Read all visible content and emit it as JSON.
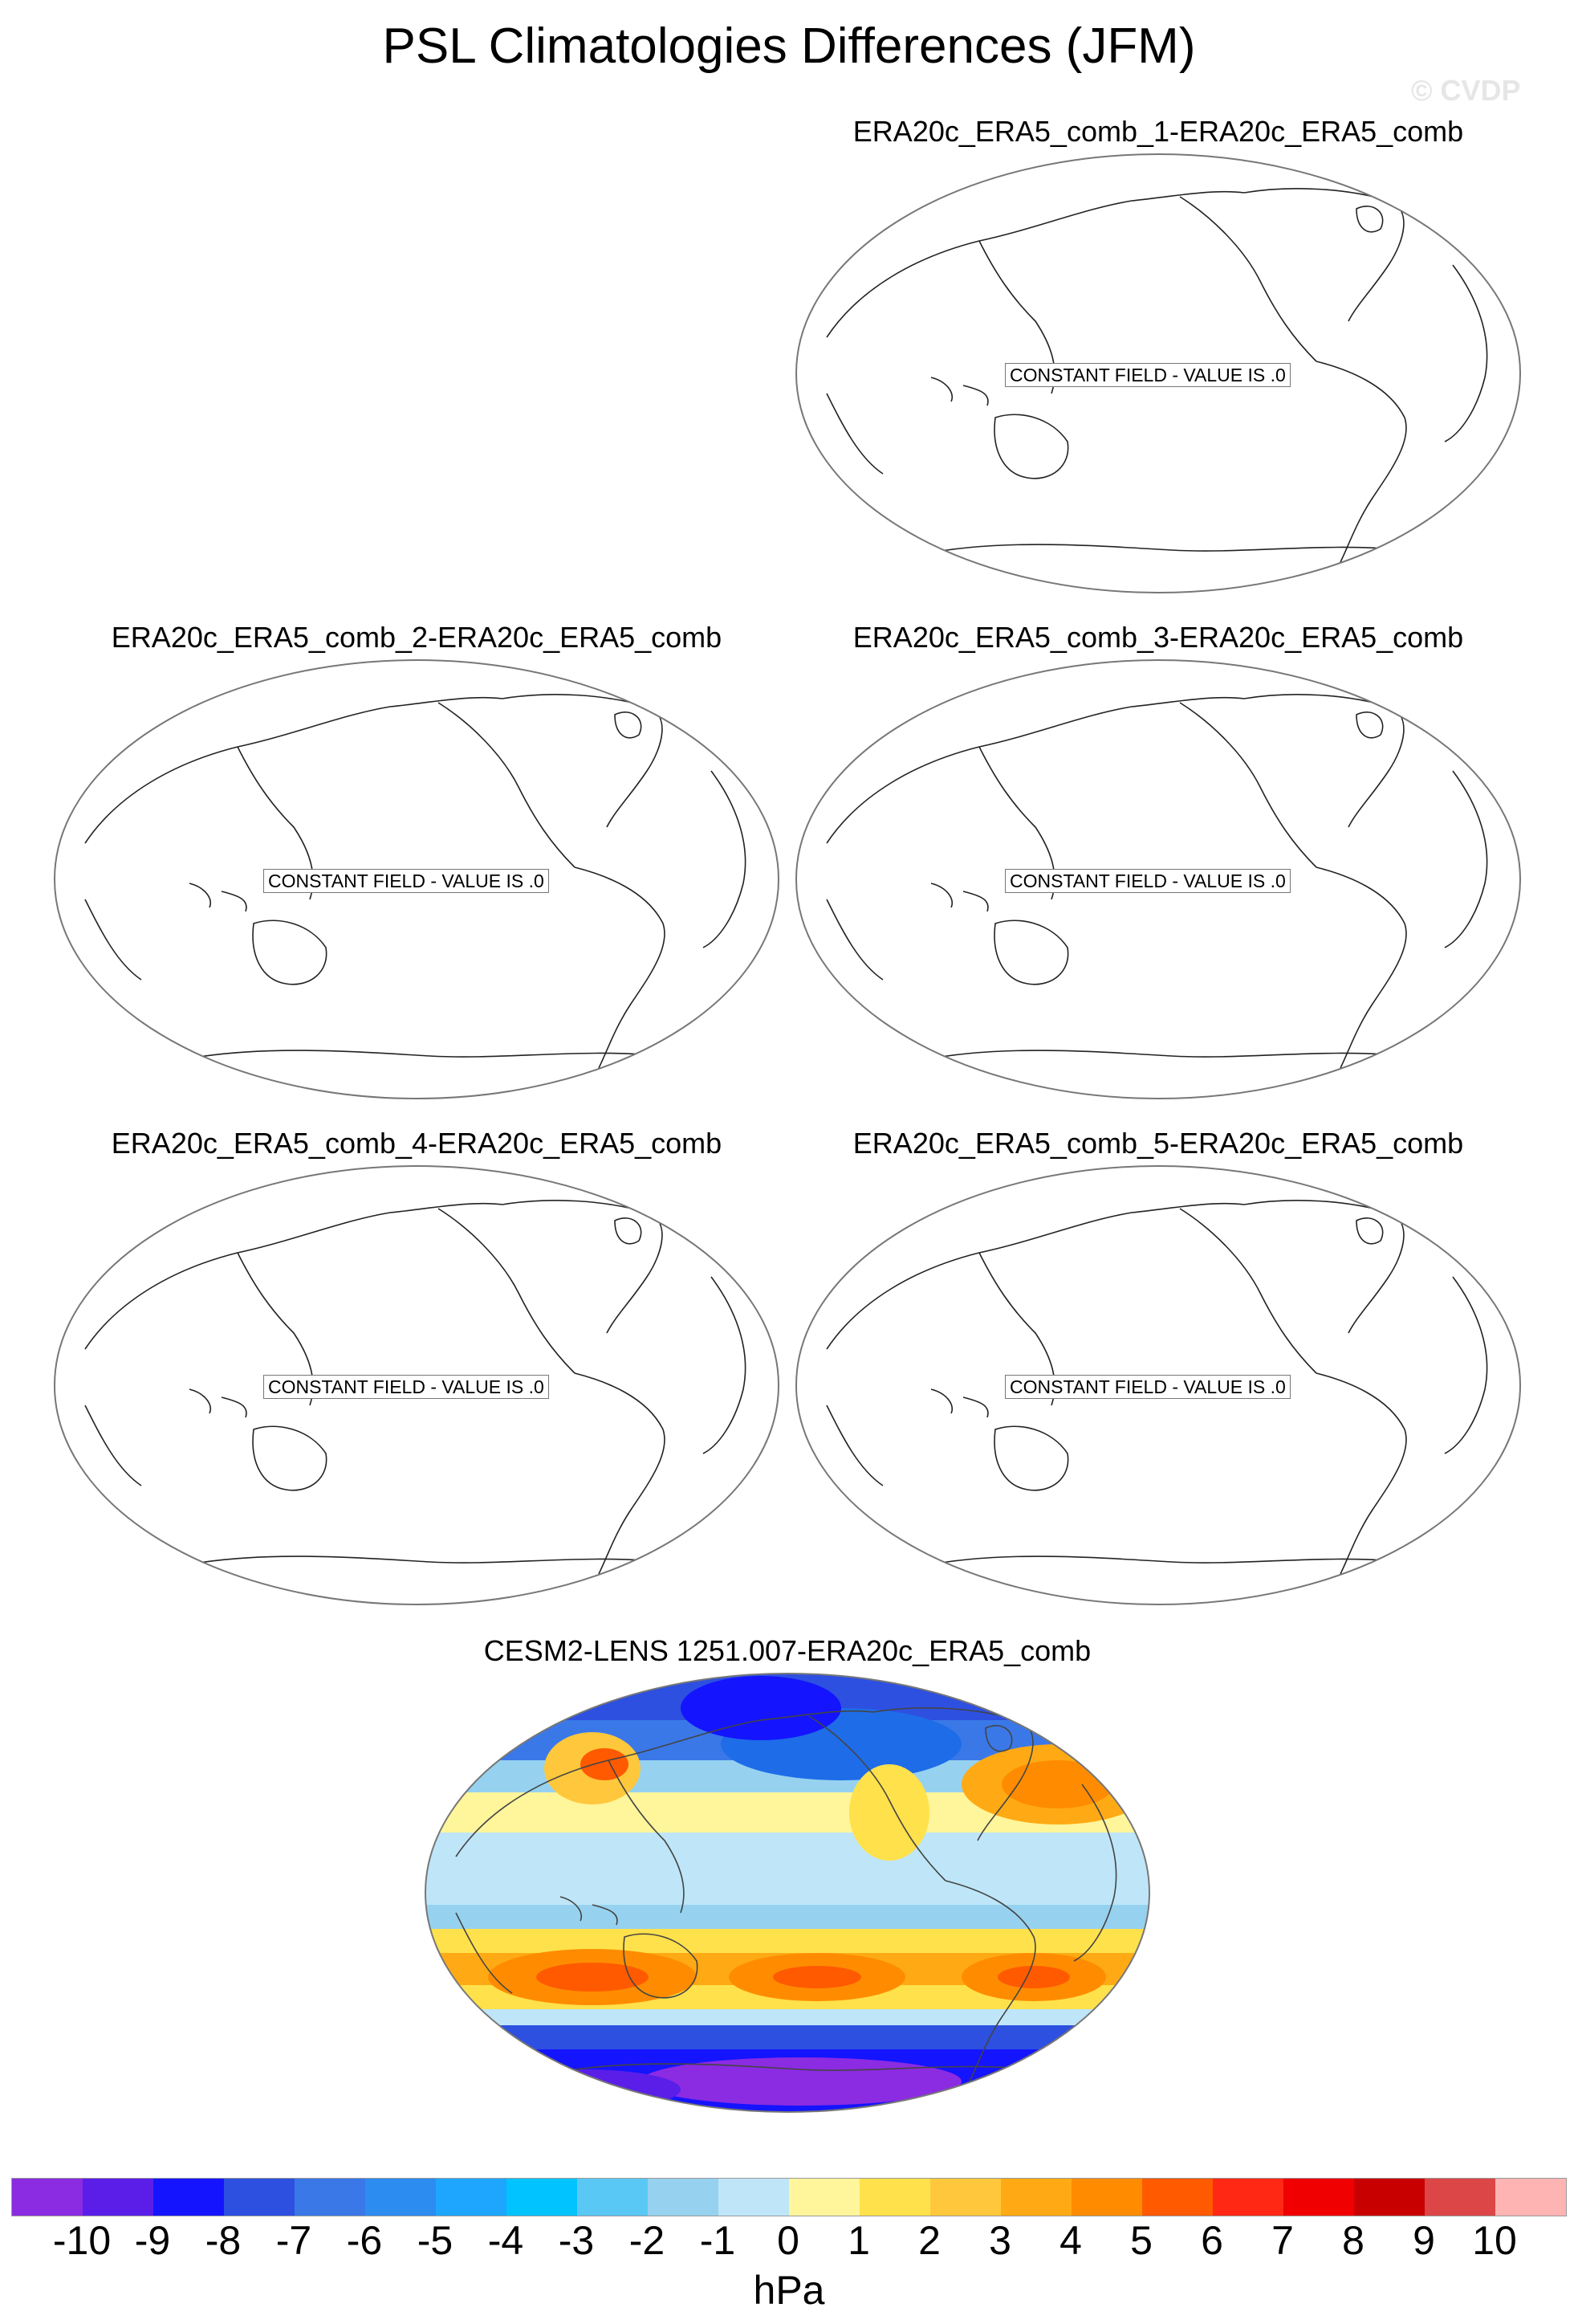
{
  "title": "PSL Climatologies Differences (JFM)",
  "watermark": "© CVDP",
  "panels": [
    {
      "title": "ERA20c_ERA5_comb_1-ERA20c_ERA5_comb",
      "note": "CONSTANT FIELD - VALUE IS .0"
    },
    {
      "title": "ERA20c_ERA5_comb_2-ERA20c_ERA5_comb",
      "note": "CONSTANT FIELD - VALUE IS .0"
    },
    {
      "title": "ERA20c_ERA5_comb_3-ERA20c_ERA5_comb",
      "note": "CONSTANT FIELD - VALUE IS .0"
    },
    {
      "title": "ERA20c_ERA5_comb_4-ERA20c_ERA5_comb",
      "note": "CONSTANT FIELD - VALUE IS .0"
    },
    {
      "title": "ERA20c_ERA5_comb_5-ERA20c_ERA5_comb",
      "note": "CONSTANT FIELD - VALUE IS .0"
    },
    {
      "title": "CESM2-LENS 1251.007-ERA20c_ERA5_comb"
    }
  ],
  "colorbar": {
    "unit": "hPa",
    "ticks": [
      "-10",
      "-9",
      "-8",
      "-7",
      "-6",
      "-5",
      "-4",
      "-3",
      "-2",
      "-1",
      "0",
      "1",
      "2",
      "3",
      "4",
      "5",
      "6",
      "7",
      "8",
      "9",
      "10"
    ],
    "colors": [
      "#8b2be2",
      "#5a1ee8",
      "#1414ff",
      "#2d50e0",
      "#3a78e8",
      "#2d8cf0",
      "#1ea6ff",
      "#00c3ff",
      "#5ac8f5",
      "#96d2f0",
      "#bee6f8",
      "#fff59b",
      "#ffe14b",
      "#ffc83c",
      "#ffaa14",
      "#ff8c00",
      "#ff5a00",
      "#ff2814",
      "#f00000",
      "#c80000",
      "#dc4646",
      "#ffb4b4"
    ]
  }
}
